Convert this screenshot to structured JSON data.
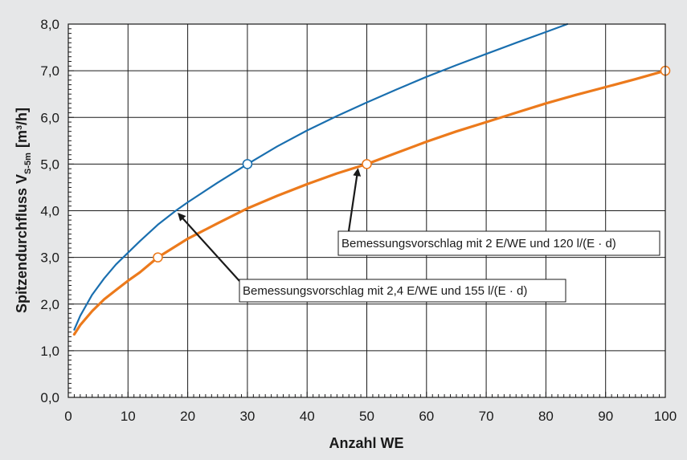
{
  "chart_data": {
    "type": "line",
    "xlabel": "Anzahl WE",
    "ylabel": {
      "main": "Spitzendurchfluss V",
      "subscript": "S-5m",
      "unit": "[m³/h]"
    },
    "xlim": [
      0,
      100
    ],
    "ylim": [
      0,
      8
    ],
    "x_ticks": [
      0,
      10,
      20,
      30,
      40,
      50,
      60,
      70,
      80,
      90,
      100
    ],
    "x_tick_labels": [
      "0",
      "10",
      "20",
      "30",
      "40",
      "50",
      "60",
      "70",
      "80",
      "90",
      "100"
    ],
    "y_ticks": [
      0,
      1,
      2,
      3,
      4,
      5,
      6,
      7,
      8
    ],
    "y_tick_labels": [
      "0,0",
      "1,0",
      "2,0",
      "3,0",
      "4,0",
      "5,0",
      "6,0",
      "7,0",
      "8,0"
    ],
    "grid": true,
    "series": [
      {
        "color": "#1a6faf",
        "x": [
          1,
          2,
          4,
          6,
          8,
          10,
          12,
          15,
          18,
          20,
          25,
          30,
          35,
          40,
          45,
          50,
          55,
          60,
          65,
          70,
          75,
          80,
          83.6
        ],
        "y": [
          1.45,
          1.75,
          2.2,
          2.55,
          2.85,
          3.1,
          3.35,
          3.7,
          4.0,
          4.18,
          4.6,
          5.0,
          5.38,
          5.72,
          6.03,
          6.32,
          6.6,
          6.87,
          7.12,
          7.36,
          7.6,
          7.83,
          8.0
        ],
        "markers": [
          {
            "x": 30,
            "y": 5.0
          }
        ]
      },
      {
        "color": "#ec7a1c",
        "x": [
          1,
          2,
          4,
          6,
          8,
          10,
          12,
          15,
          20,
          25,
          30,
          35,
          40,
          45,
          50,
          55,
          60,
          65,
          70,
          75,
          80,
          85,
          90,
          95,
          100
        ],
        "y": [
          1.35,
          1.55,
          1.85,
          2.1,
          2.3,
          2.5,
          2.68,
          3.0,
          3.4,
          3.73,
          4.05,
          4.32,
          4.57,
          4.8,
          5.0,
          5.24,
          5.48,
          5.7,
          5.9,
          6.1,
          6.3,
          6.48,
          6.65,
          6.82,
          7.0
        ],
        "markers": [
          {
            "x": 15,
            "y": 3.0
          },
          {
            "x": 50,
            "y": 5.0
          },
          {
            "x": 100,
            "y": 7.0
          }
        ]
      }
    ],
    "annotations": [
      {
        "text": "Bemessungsvorschlag mit  2 E/WE und 120 l/(E · d)",
        "target": {
          "x": 48.5,
          "y": 4.95
        }
      },
      {
        "text": "Bemessungsvorschlag mit  2,4 E/WE und 155 l/(E · d)",
        "target": {
          "x": 18.5,
          "y": 4.0
        }
      }
    ]
  }
}
